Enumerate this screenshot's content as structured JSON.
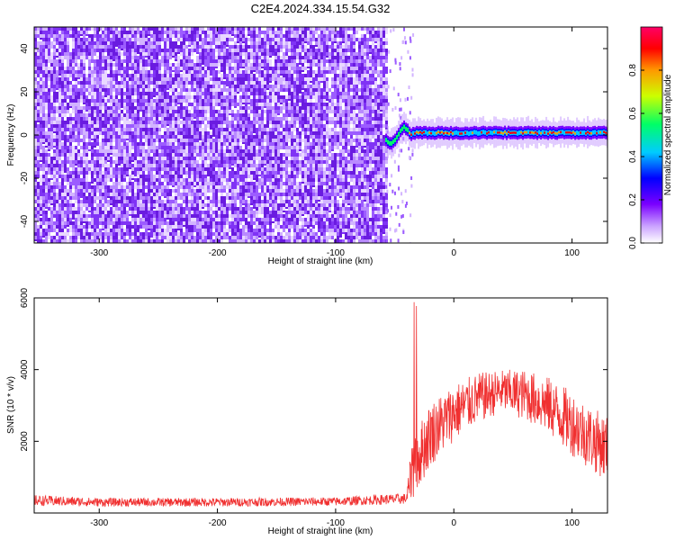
{
  "title": "C2E4.2024.334.15.54.G32",
  "chart_data": [
    {
      "type": "heatmap",
      "title": "",
      "xlabel": "Height of straight line (km)",
      "ylabel": "Frequency (Hz)",
      "xlim": [
        -355,
        130
      ],
      "ylim": [
        -50,
        50
      ],
      "xticks": [
        -300,
        -200,
        -100,
        0,
        100
      ],
      "yticks": [
        -40,
        -20,
        0,
        20,
        40
      ],
      "colorbar": {
        "label": "Normalized spectral amplitude",
        "range": [
          0,
          1
        ],
        "ticks": [
          "0.0",
          "0.2",
          "0.4",
          "0.6",
          "0.8"
        ],
        "colors": [
          "#ffffff",
          "#7a00ff",
          "#0000ff",
          "#00ccff",
          "#00ff66",
          "#ccff00",
          "#ff9900",
          "#ff0000",
          "#ff0066"
        ]
      },
      "noise_region_x": [
        -355,
        -58
      ],
      "signal_region_x": [
        -58,
        130
      ],
      "signal_center_hz": 1,
      "grid": false
    },
    {
      "type": "line",
      "title": "",
      "xlabel": "Height of straight line (km)",
      "ylabel": "SNR (10 * v/v)",
      "xlim": [
        -355,
        130
      ],
      "ylim": [
        0,
        6000
      ],
      "xticks": [
        -300,
        -200,
        -100,
        0,
        100
      ],
      "yticks": [
        2000,
        4000,
        6000
      ],
      "color": "#f03030",
      "grid": false,
      "envelope": {
        "x": [
          -355,
          -300,
          -200,
          -100,
          -40,
          -35,
          -20,
          0,
          20,
          40,
          60,
          80,
          100,
          120,
          130
        ],
        "mean": [
          350,
          300,
          300,
          320,
          400,
          1200,
          2200,
          2800,
          3200,
          3400,
          3300,
          3000,
          2500,
          2000,
          1800
        ],
        "spread": [
          150,
          120,
          120,
          120,
          150,
          900,
          900,
          800,
          700,
          600,
          700,
          800,
          900,
          900,
          900
        ]
      }
    }
  ]
}
